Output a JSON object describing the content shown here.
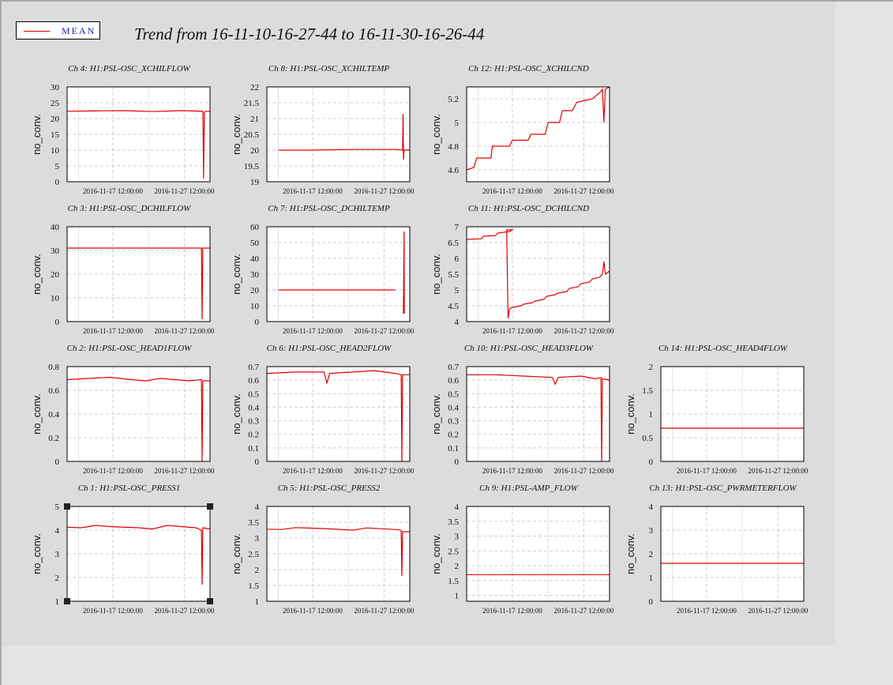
{
  "legend": {
    "label": "MEAN",
    "color": "#e00000"
  },
  "title": "Trend from 16-11-10-16-27-44 to 16-11-30-16-26-44",
  "chart_data": [
    {
      "type": "line",
      "title": "Ch 4: H1:PSL-OSC_XCHILFLOW",
      "ylabel": "no_conv.",
      "ylim": [
        0,
        30
      ],
      "yticks": [
        "0",
        "5",
        "10",
        "15",
        "20",
        "25",
        "30"
      ],
      "xticks": [
        "2016-11-17 12:00:00",
        "2016-11-27 12:00:00"
      ],
      "x": [
        0,
        0.2,
        0.4,
        0.6,
        0.8,
        0.95,
        0.955,
        0.96,
        0.97,
        1.0
      ],
      "y": [
        22.3,
        22.4,
        22.5,
        22.2,
        22.5,
        22.3,
        1,
        22,
        22.3,
        22.3
      ]
    },
    {
      "type": "line",
      "title": "Ch 8: H1:PSL-OSC_XCHILTEMP",
      "ylabel": "no_conv.",
      "ylim": [
        19,
        22
      ],
      "yticks": [
        "19",
        "19.5",
        "20",
        "20.5",
        "21",
        "21.5",
        "22"
      ],
      "xticks": [
        "2016-11-17 12:00:00",
        "2016-11-27 12:00:00"
      ],
      "x": [
        0.08,
        0.3,
        0.6,
        0.9,
        0.95,
        0.953,
        0.956,
        0.96,
        1.0
      ],
      "y": [
        20.0,
        20.0,
        20.02,
        20.02,
        20.0,
        21.15,
        19.7,
        20.0,
        20.0
      ]
    },
    {
      "type": "line",
      "title": "Ch 12: H1:PSL-OSC_XCHILCND",
      "ylabel": "no_conv.",
      "ylim": [
        4.5,
        5.3
      ],
      "yticks": [
        "4.6",
        "4.8",
        "5",
        "5.2"
      ],
      "xticks": [
        "2016-11-17 12:00:00",
        "2016-11-27 12:00:00"
      ],
      "x": [
        0.0,
        0.05,
        0.07,
        0.17,
        0.18,
        0.3,
        0.32,
        0.43,
        0.45,
        0.55,
        0.57,
        0.65,
        0.67,
        0.74,
        0.77,
        0.88,
        0.9,
        0.93,
        0.95,
        0.96,
        0.97,
        1.0
      ],
      "y": [
        4.6,
        4.62,
        4.7,
        4.7,
        4.8,
        4.8,
        4.85,
        4.85,
        4.9,
        4.9,
        5.0,
        5.0,
        5.1,
        5.1,
        5.17,
        5.2,
        5.22,
        5.25,
        5.28,
        5.0,
        5.28,
        5.3
      ]
    },
    {
      "type": "line",
      "title": "Ch 3: H1:PSL-OSC_DCHILFLOW",
      "ylabel": "no_conv.",
      "ylim": [
        0,
        40
      ],
      "yticks": [
        "0",
        "10",
        "20",
        "30",
        "40"
      ],
      "xticks": [
        "2016-11-17 12:00:00",
        "2016-11-27 12:00:00"
      ],
      "x": [
        0,
        0.3,
        0.5,
        0.94,
        0.945,
        0.95,
        0.96,
        1.0
      ],
      "y": [
        31,
        31,
        31,
        31,
        1,
        31,
        31,
        31
      ]
    },
    {
      "type": "line",
      "title": "Ch 7: H1:PSL-OSC_DCHILTEMP",
      "ylabel": "no_conv.",
      "ylim": [
        0,
        60
      ],
      "yticks": [
        "0",
        "10",
        "20",
        "30",
        "40",
        "50",
        "60"
      ],
      "xticks": [
        "2016-11-17 12:00:00",
        "2016-11-27 12:00:00"
      ],
      "x": [
        0.08,
        0.3,
        0.6,
        0.9,
        0.9,
        0.95,
        0.955,
        0.96,
        0.962
      ],
      "y": [
        20,
        20,
        20,
        20,
        null,
        null,
        5,
        57,
        5
      ]
    },
    {
      "type": "line",
      "title": "Ch 11: H1:PSL-OSC_DCHILCND",
      "ylabel": "no_conv.",
      "ylim": [
        4,
        7
      ],
      "yticks": [
        "4",
        "4.5",
        "5",
        "5.5",
        "6",
        "6.5",
        "7"
      ],
      "xticks": [
        "2016-11-17 12:00:00",
        "2016-11-27 12:00:00"
      ],
      "x": [
        0.0,
        0.1,
        0.12,
        0.2,
        0.22,
        0.3,
        0.32,
        0.28,
        0.29,
        0.3,
        0.32,
        0.38,
        0.4,
        0.46,
        0.48,
        0.54,
        0.56,
        0.62,
        0.64,
        0.7,
        0.72,
        0.78,
        0.8,
        0.86,
        0.88,
        0.93,
        0.95,
        0.96,
        0.97,
        1.0
      ],
      "y": [
        6.6,
        6.62,
        6.7,
        6.72,
        6.8,
        6.85,
        6.9,
        6.9,
        4.1,
        4.4,
        4.45,
        4.5,
        4.55,
        4.6,
        4.65,
        4.7,
        4.8,
        4.85,
        4.9,
        4.95,
        5.05,
        5.1,
        5.2,
        5.25,
        5.35,
        5.4,
        5.5,
        5.9,
        5.5,
        5.6
      ]
    },
    {
      "type": "line",
      "title": "Ch 2: H1:PSL-OSC_HEAD1FLOW",
      "ylabel": "no_conv.",
      "ylim": [
        0,
        0.8
      ],
      "yticks": [
        "0",
        "0.2",
        "0.4",
        "0.6",
        "0.8"
      ],
      "xticks": [
        "2016-11-17 12:00:00",
        "2016-11-27 12:00:00"
      ],
      "x": [
        0,
        0.15,
        0.3,
        0.45,
        0.55,
        0.65,
        0.75,
        0.85,
        0.94,
        0.945,
        0.95,
        1.0
      ],
      "y": [
        0.69,
        0.7,
        0.71,
        0.69,
        0.68,
        0.7,
        0.69,
        0.68,
        0.69,
        0.0,
        0.68,
        0.68
      ]
    },
    {
      "type": "line",
      "title": "Ch 6: H1:PSL-OSC_HEAD2FLOW",
      "ylabel": "no_conv.",
      "ylim": [
        0,
        0.7
      ],
      "yticks": [
        "0",
        "0.1",
        "0.2",
        "0.3",
        "0.4",
        "0.5",
        "0.6",
        "0.7"
      ],
      "xticks": [
        "2016-11-17 12:00:00",
        "2016-11-27 12:00:00"
      ],
      "x": [
        0,
        0.2,
        0.4,
        0.42,
        0.44,
        0.6,
        0.75,
        0.9,
        0.94,
        0.945,
        0.95,
        1.0
      ],
      "y": [
        0.65,
        0.66,
        0.66,
        0.58,
        0.65,
        0.66,
        0.67,
        0.65,
        0.64,
        0.0,
        0.64,
        0.64
      ]
    },
    {
      "type": "line",
      "title": "Ch 10: H1:PSL-OSC_HEAD3FLOW",
      "ylabel": "no_conv.",
      "ylim": [
        0,
        0.7
      ],
      "yticks": [
        "0",
        "0.1",
        "0.2",
        "0.3",
        "0.4",
        "0.5",
        "0.6",
        "0.7"
      ],
      "xticks": [
        "2016-11-17 12:00:00",
        "2016-11-27 12:00:00"
      ],
      "x": [
        0,
        0.2,
        0.4,
        0.6,
        0.62,
        0.64,
        0.8,
        0.9,
        0.94,
        0.945,
        0.95,
        1.0
      ],
      "y": [
        0.64,
        0.64,
        0.63,
        0.62,
        0.57,
        0.62,
        0.63,
        0.61,
        0.62,
        0.0,
        0.61,
        0.6
      ]
    },
    {
      "type": "line",
      "title": "Ch 14: H1:PSL-OSC_HEAD4FLOW",
      "ylabel": "no_conv.",
      "ylim": [
        0,
        2
      ],
      "yticks": [
        "0",
        "0.5",
        "1",
        "1.5",
        "2"
      ],
      "xticks": [
        "2016-11-17 12:00:00",
        "2016-11-27 12:00:00"
      ],
      "x": [
        0,
        1
      ],
      "y": [
        0.7,
        0.7
      ]
    },
    {
      "type": "line",
      "title": "Ch 1: H1:PSL-OSC_PRESS1",
      "ylabel": "no_conv.",
      "ylim": [
        1,
        5
      ],
      "yticks": [
        "1",
        "2",
        "3",
        "4",
        "5"
      ],
      "xticks": [
        "2016-11-17 12:00:00",
        "2016-11-27 12:00:00"
      ],
      "x": [
        0,
        0.1,
        0.2,
        0.3,
        0.5,
        0.6,
        0.7,
        0.9,
        0.94,
        0.945,
        0.95,
        1.0
      ],
      "y": [
        4.12,
        4.1,
        4.2,
        4.15,
        4.1,
        4.05,
        4.2,
        4.1,
        4.0,
        1.7,
        4.1,
        4.05
      ]
    },
    {
      "type": "line",
      "title": "Ch 5: H1:PSL-OSC_PRESS2",
      "ylabel": "no_conv.",
      "ylim": [
        1,
        4
      ],
      "yticks": [
        "1",
        "1.5",
        "2",
        "2.5",
        "3",
        "3.5",
        "4"
      ],
      "xticks": [
        "2016-11-17 12:00:00",
        "2016-11-27 12:00:00"
      ],
      "x": [
        0,
        0.1,
        0.2,
        0.4,
        0.6,
        0.7,
        0.9,
        0.94,
        0.945,
        0.95,
        1.0
      ],
      "y": [
        3.28,
        3.27,
        3.33,
        3.3,
        3.25,
        3.32,
        3.27,
        3.25,
        1.8,
        3.2,
        3.2
      ]
    },
    {
      "type": "line",
      "title": "Ch 9: H1:PSL-AMP_FLOW",
      "ylabel": "no_conv.",
      "ylim": [
        0.8,
        4
      ],
      "yticks": [
        "1",
        "1.5",
        "2",
        "2.5",
        "3",
        "3.5",
        "4"
      ],
      "xticks": [
        "2016-11-17 12:00:00",
        "2016-11-27 12:00:00"
      ],
      "x": [
        0,
        1
      ],
      "y": [
        1.7,
        1.7
      ]
    },
    {
      "type": "line",
      "title": "Ch 13: H1:PSL-OSC_PWRMETERFLOW",
      "ylabel": "no_conv.",
      "ylim": [
        0,
        4
      ],
      "yticks": [
        "0",
        "1",
        "2",
        "3",
        "4"
      ],
      "xticks": [
        "2016-11-17 12:00:00",
        "2016-11-27 12:00:00"
      ],
      "x": [
        0,
        1
      ],
      "y": [
        1.6,
        1.6
      ]
    }
  ]
}
